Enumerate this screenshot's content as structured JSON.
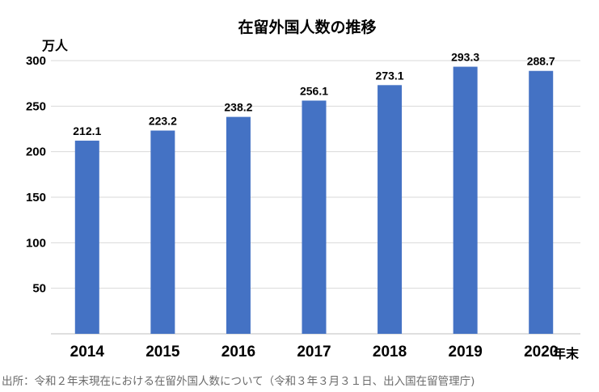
{
  "chart_data": {
    "type": "bar",
    "title": "在留外国人数の推移",
    "ylabel": "万人",
    "xlabel": "年末",
    "categories": [
      "2014",
      "2015",
      "2016",
      "2017",
      "2018",
      "2019",
      "2020"
    ],
    "values": [
      212.1,
      223.2,
      238.2,
      256.1,
      273.1,
      293.3,
      288.7
    ],
    "data_labels": [
      "212.1",
      "223.2",
      "238.2",
      "256.1",
      "273.1",
      "293.3",
      "288.7"
    ],
    "ylim": [
      0,
      300
    ],
    "yticks": [
      50,
      100,
      150,
      200,
      250,
      300
    ],
    "grid": true,
    "bar_color": "#4472c4",
    "source": "出所：令和２年末現在における在留外国人数について（令和３年３月３１日、出入国在留管理庁)"
  }
}
